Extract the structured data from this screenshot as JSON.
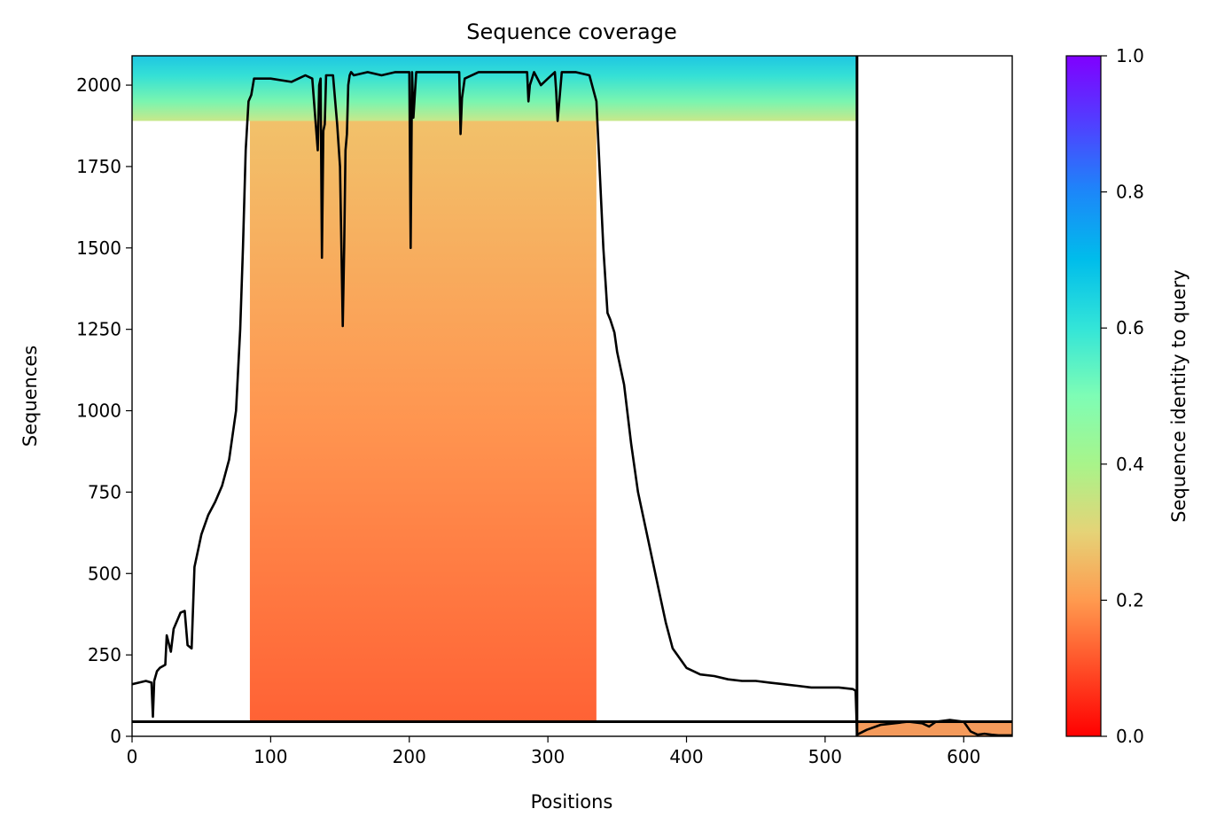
{
  "chart_data": {
    "type": "heatmap",
    "title": "Sequence coverage",
    "xlabel": "Positions",
    "ylabel": "Sequences",
    "xlim": [
      0,
      635
    ],
    "ylim": [
      0,
      2090
    ],
    "x_ticks": [
      "0",
      "100",
      "200",
      "300",
      "400",
      "500",
      "600"
    ],
    "x_tick_values": [
      0,
      100,
      200,
      300,
      400,
      500,
      600
    ],
    "y_ticks": [
      "0",
      "250",
      "500",
      "750",
      "1000",
      "1250",
      "1500",
      "1750",
      "2000"
    ],
    "y_tick_values": [
      0,
      250,
      500,
      750,
      1000,
      1250,
      1500,
      1750,
      2000
    ],
    "grid": false,
    "chain_boundary_x": 523,
    "chain_boundary_y": 45,
    "colorbar": {
      "label": "Sequence identity to query",
      "range": [
        0.0,
        1.0
      ],
      "ticks": [
        "0.0",
        "0.2",
        "0.4",
        "0.6",
        "0.8",
        "1.0"
      ],
      "tick_values": [
        0.0,
        0.2,
        0.4,
        0.6,
        0.8,
        1.0
      ],
      "colormap": "rainbow"
    },
    "coverage_blocks": [
      {
        "x": [
          85,
          335
        ],
        "y": [
          45,
          1890
        ],
        "identity_bottom": 0.12,
        "identity_top": 0.28
      },
      {
        "x": [
          0,
          523
        ],
        "y": [
          1890,
          2090
        ],
        "identity_bottom": 0.38,
        "identity_top": 0.68
      },
      {
        "x": [
          523,
          635
        ],
        "y": [
          0,
          45
        ],
        "identity_bottom": 0.18,
        "identity_top": 0.22
      }
    ],
    "series": [
      {
        "name": "coverage",
        "color": "#000000",
        "x": [
          0,
          5,
          10,
          14,
          15,
          16,
          18,
          20,
          24,
          25,
          28,
          30,
          33,
          35,
          38,
          40,
          43,
          45,
          48,
          50,
          55,
          60,
          65,
          70,
          75,
          78,
          80,
          82,
          84,
          86,
          88,
          90,
          100,
          115,
          120,
          125,
          130,
          134,
          135,
          136,
          137,
          138,
          139,
          140,
          142,
          145,
          148,
          150,
          152,
          153,
          154,
          155,
          156,
          157,
          158,
          160,
          170,
          180,
          190,
          200,
          201,
          202,
          203,
          205,
          210,
          230,
          236,
          237,
          238,
          240,
          250,
          270,
          280,
          285,
          286,
          287,
          290,
          295,
          300,
          305,
          306,
          307,
          310,
          320,
          330,
          335,
          340,
          343,
          345,
          348,
          350,
          355,
          360,
          365,
          370,
          375,
          380,
          385,
          390,
          395,
          400,
          410,
          420,
          430,
          440,
          450,
          460,
          470,
          480,
          490,
          500,
          510,
          520,
          522,
          523,
          530,
          540,
          550,
          560,
          570,
          575,
          580,
          590,
          600,
          605,
          610,
          615,
          620,
          625,
          630,
          635
        ],
        "y": [
          160,
          165,
          170,
          165,
          60,
          170,
          200,
          210,
          220,
          310,
          260,
          330,
          360,
          380,
          385,
          280,
          270,
          520,
          580,
          620,
          680,
          720,
          770,
          850,
          1000,
          1250,
          1500,
          1800,
          1950,
          1970,
          2020,
          2020,
          2020,
          2010,
          2020,
          2030,
          2020,
          1800,
          2000,
          2020,
          1470,
          1860,
          1880,
          2030,
          2030,
          2030,
          1880,
          1750,
          1260,
          1500,
          1800,
          1850,
          2000,
          2030,
          2040,
          2030,
          2040,
          2030,
          2040,
          2040,
          1500,
          2040,
          1900,
          2040,
          2040,
          2040,
          2040,
          1850,
          1960,
          2020,
          2040,
          2040,
          2040,
          2040,
          1950,
          2000,
          2040,
          2000,
          2020,
          2040,
          1980,
          1890,
          2040,
          2040,
          2030,
          1950,
          1500,
          1300,
          1280,
          1240,
          1180,
          1080,
          900,
          750,
          650,
          550,
          450,
          350,
          270,
          240,
          210,
          190,
          185,
          175,
          170,
          170,
          165,
          160,
          155,
          150,
          150,
          150,
          145,
          140,
          5,
          20,
          35,
          40,
          45,
          40,
          30,
          45,
          50,
          45,
          15,
          5,
          8,
          5,
          3,
          3,
          3
        ]
      }
    ]
  }
}
